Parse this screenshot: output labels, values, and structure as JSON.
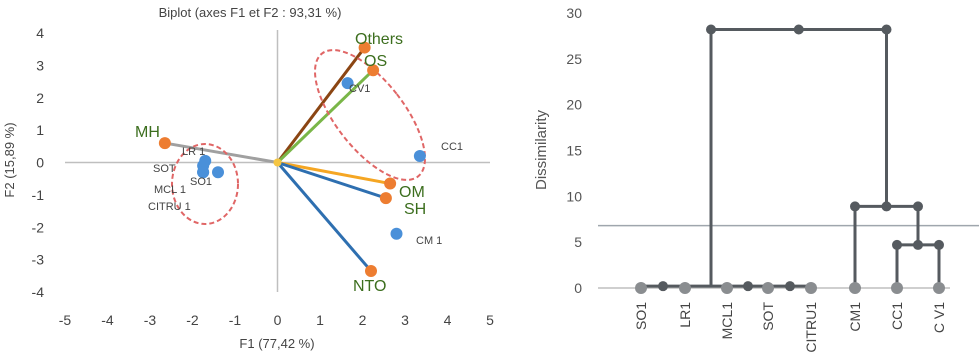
{
  "chart_data": [
    {
      "type": "scatter",
      "subtype": "biplot",
      "title": "Biplot (axes F1 et F2 : 93,31 %)",
      "xlabel": "F1 (77,42 %)",
      "ylabel": "F2 (15,89 %)",
      "xlim": [
        -5,
        5
      ],
      "ylim": [
        -4,
        4
      ],
      "xticks": [
        -5,
        -4,
        -3,
        -2,
        -1,
        0,
        1,
        2,
        3,
        4,
        5
      ],
      "yticks": [
        -4,
        -3,
        -2,
        -1,
        0,
        1,
        2,
        3,
        4
      ],
      "grid": false,
      "observations": [
        {
          "label": "CV1",
          "x": 1.65,
          "y": 2.45
        },
        {
          "label": "CC1",
          "x": 3.35,
          "y": 0.2
        },
        {
          "label": "CM 1",
          "x": 2.8,
          "y": -2.2
        },
        {
          "label": "LR 1",
          "x": -1.7,
          "y": 0.05
        },
        {
          "label": "SOT",
          "x": -1.75,
          "y": -0.1
        },
        {
          "label": "SO1",
          "x": -1.4,
          "y": -0.3
        },
        {
          "label": "MCL 1",
          "x": -1.75,
          "y": -0.3
        },
        {
          "label": "CITRU 1",
          "x": -1.75,
          "y": -0.3
        }
      ],
      "variables": [
        {
          "label": "Others",
          "x": 2.05,
          "y": 3.55,
          "color": "#8b4513"
        },
        {
          "label": "OS",
          "x": 2.25,
          "y": 2.85,
          "color": "#7ab648"
        },
        {
          "label": "MH",
          "x": -2.65,
          "y": 0.6,
          "color": "#a0a0a0"
        },
        {
          "label": "OM",
          "x": 2.65,
          "y": -0.65,
          "color": "#f5a623"
        },
        {
          "label": "SH",
          "x": 2.55,
          "y": -1.1,
          "color": "#2e6fb0"
        },
        {
          "label": "NTO",
          "x": 2.2,
          "y": -3.35,
          "color": "#2e6fb0"
        }
      ],
      "point_colors": {
        "observations": "#4a90d9",
        "variables": "#ed7d31",
        "text_variables": "#3c6e1e"
      }
    },
    {
      "type": "dendrogram",
      "ylabel": "Dissimilarity",
      "ylim": [
        0,
        30
      ],
      "yticks": [
        0,
        5,
        10,
        15,
        20,
        25,
        30
      ],
      "truncation_line": 6.8,
      "leaves": [
        "SO1",
        "LR1",
        "MCL1",
        "SOT",
        "CITRU1",
        "CM1",
        "CC1",
        "C V1"
      ],
      "merges": [
        {
          "left": "SO1",
          "right": "LR1",
          "height": 0.2
        },
        {
          "left": "MCL1",
          "right": "SOT",
          "height": 0.2
        },
        {
          "left": "(MCL1,SOT)",
          "right": "CITRU1",
          "height": 0.2
        },
        {
          "left": "CC1",
          "right": "C V1",
          "height": 4.7
        },
        {
          "left": "CM1",
          "right": "(CC1,C V1)",
          "height": 8.9
        },
        {
          "left": "(SO1..CITRU1)",
          "right": "(CM1,CC1,C V1)",
          "height": 28.2
        }
      ]
    }
  ]
}
